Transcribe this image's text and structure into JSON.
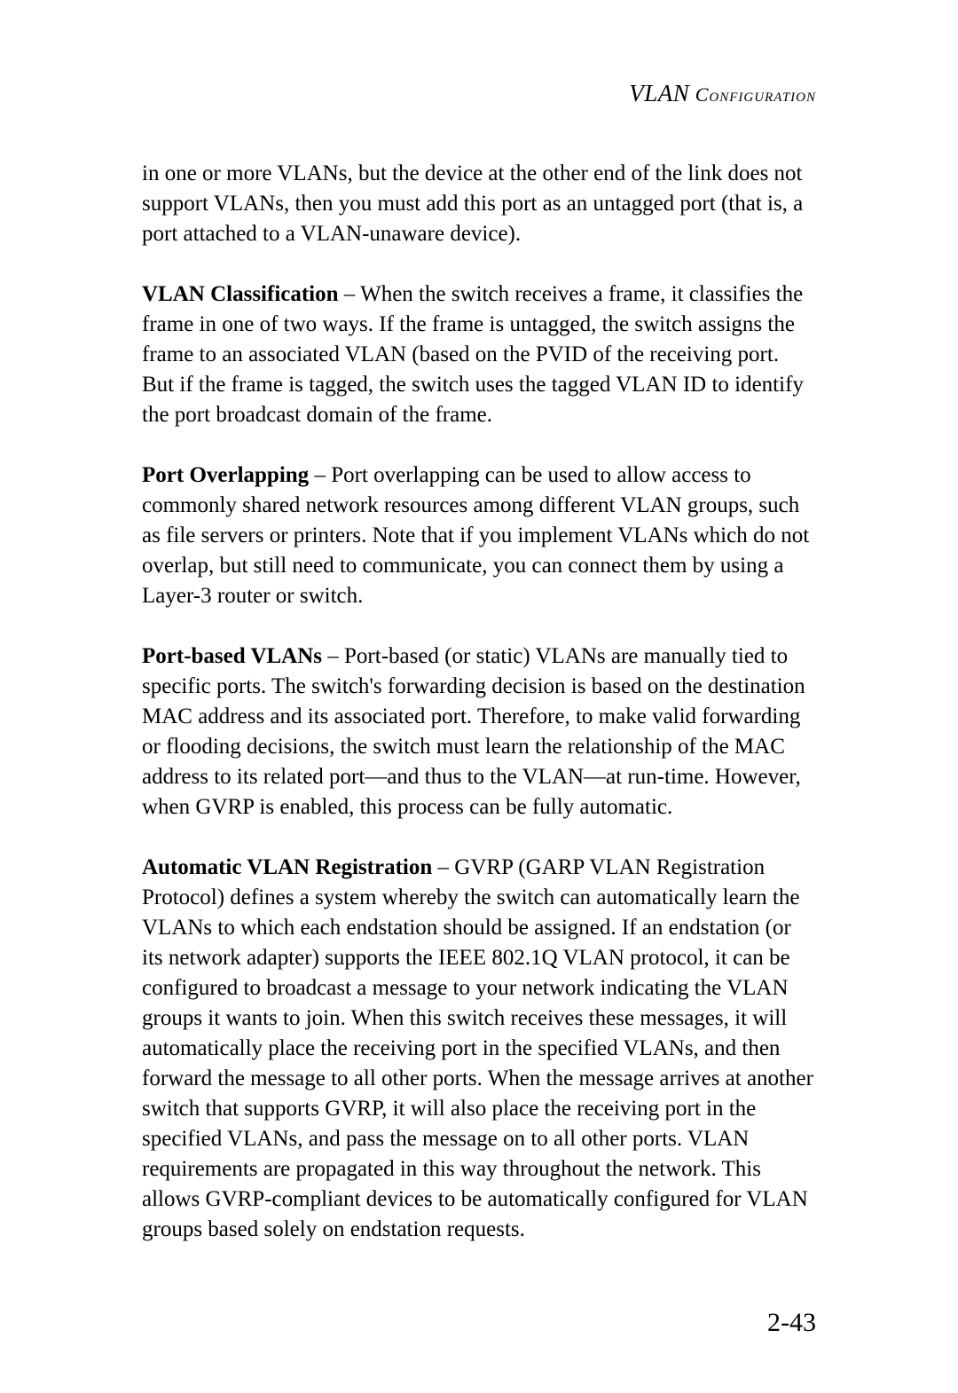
{
  "header": {
    "main": "VLAN",
    "sub": " Configuration"
  },
  "paragraphs": {
    "intro": "in one or more VLANs, but the device at the other end of the link does not support VLANs, then you must add this port as an untagged port (that is, a port attached to a VLAN-unaware device).",
    "vlan_classification_term": "VLAN Classification",
    "vlan_classification_text": " – When the switch receives a frame, it classifies the frame in one of two ways. If the frame is untagged, the switch assigns the frame to an associated VLAN (based on the PVID of the receiving port. But if the frame is tagged, the switch uses the tagged VLAN ID to identify the port broadcast domain of the frame.",
    "port_overlapping_term": "Port Overlapping",
    "port_overlapping_text": " – Port overlapping can be used to allow access to commonly shared network resources among different VLAN groups, such as file servers or printers. Note that if you implement VLANs which do not overlap, but still need to communicate, you can connect them by using a Layer-3 router or switch.",
    "port_based_term": "Port-based VLANs",
    "port_based_text": " – Port-based (or static) VLANs are manually tied to specific ports. The switch's forwarding decision is based on the destination MAC address and its associated port. Therefore, to make valid forwarding or flooding decisions, the switch must learn the relationship of the MAC address to its related port—and thus to the VLAN—at run-time. However, when GVRP is enabled, this process can be fully automatic.",
    "auto_reg_term": "Automatic VLAN Registration",
    "auto_reg_text": " – GVRP (GARP VLAN Registration Protocol) defines a system whereby the switch can automatically learn the VLANs to which each endstation should be assigned. If an endstation (or its network adapter) supports the IEEE 802.1Q VLAN protocol, it can be configured to broadcast a message to your network indicating the VLAN groups it wants to join. When this switch receives these messages, it will automatically place the receiving port in the specified VLANs, and then forward the message to all other ports. When the message arrives at another switch that supports GVRP, it will also place the receiving port in the specified VLANs, and pass the message on to all other ports. VLAN requirements are propagated in this way throughout the network. This allows GVRP-compliant devices to be automatically configured for VLAN groups based solely on endstation requests."
  },
  "page_number": "2-43"
}
